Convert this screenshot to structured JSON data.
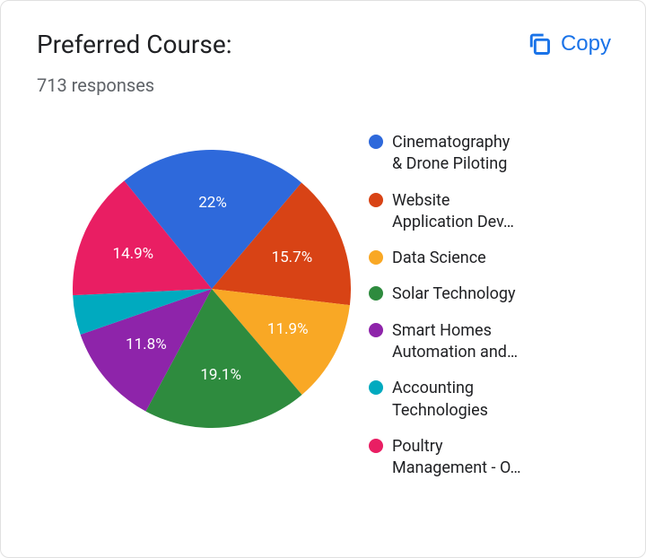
{
  "header": {
    "title": "Preferred Course:",
    "copy_label": "Copy",
    "responses_text": "713 responses"
  },
  "chart": {
    "type": "pie",
    "background_color": "#ffffff",
    "label_color": "#ffffff",
    "label_fontsize": 17,
    "legend_fontsize": 18,
    "start_angle_deg": 129,
    "direction": "clockwise",
    "slices": [
      {
        "name": "Cinematography & Drone Piloting",
        "display_name": "Cinematography\n& Drone Piloting",
        "value": 22.0,
        "label": "22%",
        "color": "#2e69db",
        "show_label": true
      },
      {
        "name": "Website Application Dev…",
        "display_name": "Website\nApplication Dev…",
        "value": 15.7,
        "label": "15.7%",
        "color": "#d84315",
        "show_label": true
      },
      {
        "name": "Data Science",
        "display_name": "Data Science",
        "value": 11.9,
        "label": "11.9%",
        "color": "#f9a825",
        "show_label": true
      },
      {
        "name": "Solar Technology",
        "display_name": "Solar Technology",
        "value": 19.1,
        "label": "19.1%",
        "color": "#2e8b3e",
        "show_label": true
      },
      {
        "name": "Smart Homes Automation and…",
        "display_name": "Smart Homes\nAutomation and…",
        "value": 11.8,
        "label": "11.8%",
        "color": "#8e24aa",
        "show_label": true
      },
      {
        "name": "Accounting Technologies",
        "display_name": "Accounting\nTechnologies",
        "value": 4.6,
        "label": "",
        "color": "#00aabf",
        "show_label": false
      },
      {
        "name": "Poultry Management - O…",
        "display_name": "Poultry\nManagement - O…",
        "value": 14.9,
        "label": "14.9%",
        "color": "#e91e63",
        "show_label": true
      }
    ]
  }
}
